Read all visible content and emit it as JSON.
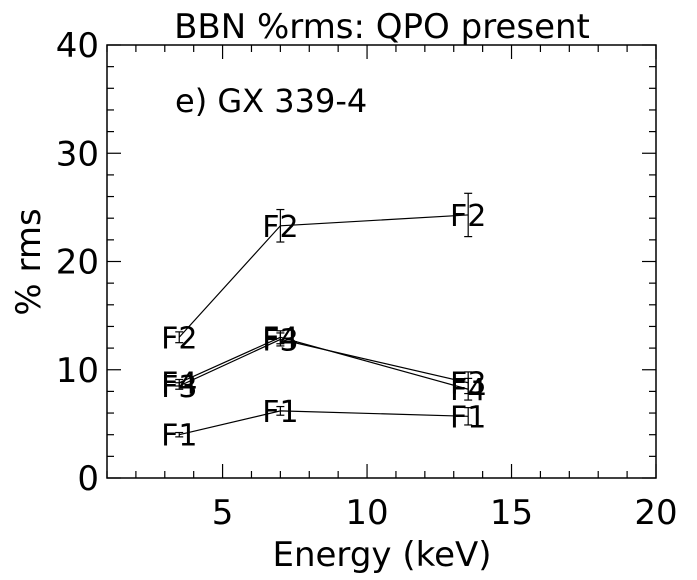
{
  "chart_data": {
    "type": "line",
    "title": "BBN %rms: QPO present",
    "xlabel": "Energy (keV)",
    "ylabel": "% rms",
    "annotation": "e) GX 339-4",
    "xlim": [
      1,
      20
    ],
    "ylim": [
      0,
      40
    ],
    "xticks": [
      "5",
      "10",
      "15",
      "20"
    ],
    "yticks": [
      "0",
      "10",
      "20",
      "30",
      "40"
    ],
    "grid": false,
    "series": [
      {
        "name": "F1",
        "x": [
          3.5,
          7.0,
          13.5
        ],
        "y": [
          4.0,
          6.2,
          5.7
        ],
        "err": [
          0.2,
          0.4,
          0.8
        ]
      },
      {
        "name": "F2",
        "x": [
          3.5,
          7.0,
          13.5
        ],
        "y": [
          13.0,
          23.3,
          24.3
        ],
        "err": [
          0.5,
          1.5,
          2.0
        ]
      },
      {
        "name": "F3",
        "x": [
          3.5,
          7.0,
          13.5
        ],
        "y": [
          8.5,
          12.8,
          8.8
        ],
        "err": [
          0.3,
          0.6,
          1.0
        ]
      },
      {
        "name": "F4",
        "x": [
          3.5,
          7.0,
          13.5
        ],
        "y": [
          8.8,
          13.0,
          8.2
        ],
        "err": [
          0.3,
          0.6,
          1.0
        ]
      }
    ]
  }
}
